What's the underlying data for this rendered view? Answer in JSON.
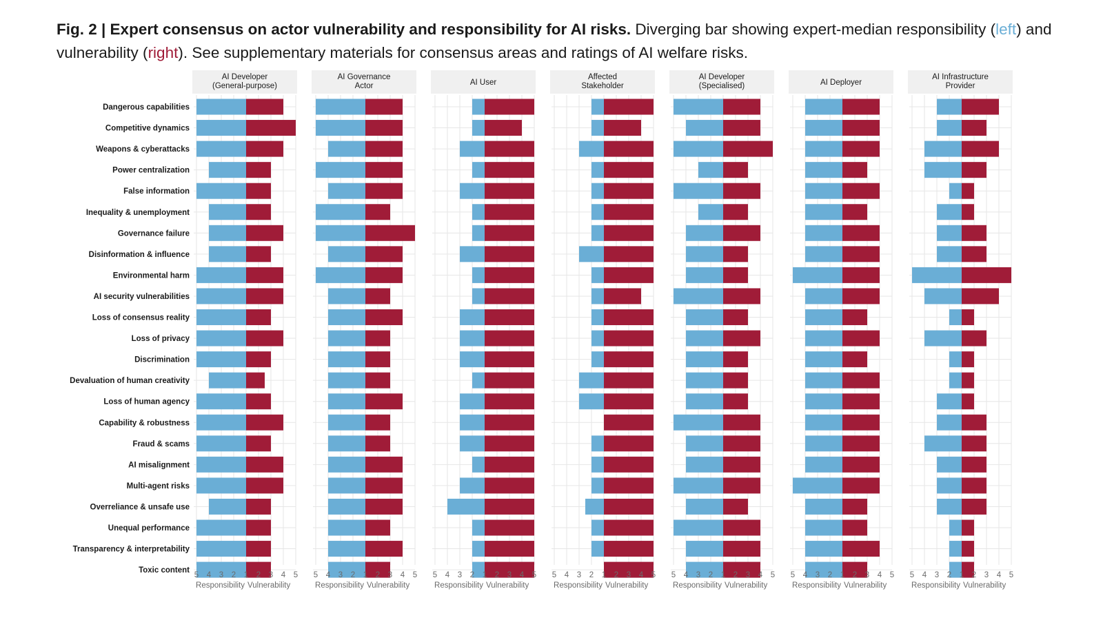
{
  "caption": {
    "label": "Fig. 2 | Expert consensus on actor vulnerability and responsibility for AI risks.",
    "text_1": " Diverging bar showing expert-median responsibility (",
    "left_word": "left",
    "text_2": ") and vulnerability (",
    "right_word": "right",
    "text_3": "). See supplementary materials for consensus areas and ratings of AI welfare risks."
  },
  "colors": {
    "responsibility": "#6aaed6",
    "vulnerability": "#a01c38",
    "panel_header_bg": "#f0f0f0",
    "grid": "#e6e6e6"
  },
  "chart_data": {
    "type": "bar",
    "orientation": "horizontal-diverging",
    "x_tick_labels": [
      "5",
      "4",
      "3",
      "2",
      "1",
      "2",
      "3",
      "4",
      "5"
    ],
    "xlabel_left": "Responsibility",
    "xlabel_right": "Vulnerability",
    "xlim": [
      1,
      5
    ],
    "grid": true,
    "categories": [
      "Dangerous capabilities",
      "Competitive dynamics",
      "Weapons & cyberattacks",
      "Power centralization",
      "False information",
      "Inequality & unemployment",
      "Governance failure",
      "Disinformation & influence",
      "Environmental harm",
      "AI security vulnerabilities",
      "Loss of consensus reality",
      "Loss of privacy",
      "Discrimination",
      "Devaluation of human creativity",
      "Loss of human agency",
      "Capability & robustness",
      "Fraud & scams",
      "AI misalignment",
      "Multi-agent risks",
      "Overreliance & unsafe use",
      "Unequal performance",
      "Transparency & interpretability",
      "Toxic content"
    ],
    "panels": [
      {
        "name": "AI Developer\n(General-purpose)",
        "responsibility": [
          5,
          5,
          5,
          4,
          5,
          4,
          4,
          4,
          5,
          5,
          5,
          5,
          5,
          4,
          5,
          5,
          5,
          5,
          5,
          4,
          5,
          5,
          5
        ],
        "vulnerability": [
          4,
          5,
          4,
          3,
          3,
          3,
          4,
          3,
          4,
          4,
          3,
          4,
          3,
          2.5,
          3,
          4,
          3,
          4,
          4,
          3,
          3,
          3,
          3
        ]
      },
      {
        "name": "AI Governance\nActor",
        "responsibility": [
          5,
          5,
          4,
          5,
          4,
          5,
          5,
          4,
          5,
          4,
          4,
          4,
          4,
          4,
          4,
          4,
          4,
          4,
          4,
          4,
          4,
          4,
          4
        ],
        "vulnerability": [
          4,
          4,
          4,
          4,
          4,
          3,
          5,
          4,
          4,
          3,
          4,
          3,
          3,
          3,
          4,
          3,
          3,
          4,
          4,
          4,
          3,
          4,
          3
        ]
      },
      {
        "name": "AI User",
        "responsibility": [
          2,
          2,
          3,
          2,
          3,
          2,
          2,
          3,
          2,
          2,
          3,
          3,
          3,
          2,
          3,
          3,
          3,
          2,
          3,
          4,
          2,
          2,
          2
        ],
        "vulnerability": [
          5,
          4,
          5,
          5,
          5,
          5,
          5,
          5,
          5,
          5,
          5,
          5,
          5,
          5,
          5,
          5,
          5,
          5,
          5,
          5,
          5,
          5,
          5
        ]
      },
      {
        "name": "Affected\nStakeholder",
        "responsibility": [
          2,
          2,
          3,
          2,
          2,
          2,
          2,
          3,
          2,
          2,
          2,
          2,
          2,
          3,
          3,
          1,
          2,
          2,
          2,
          2.5,
          2,
          2,
          1
        ],
        "vulnerability": [
          5,
          4,
          5,
          5,
          5,
          5,
          5,
          5,
          5,
          4,
          5,
          5,
          5,
          5,
          5,
          5,
          5,
          5,
          5,
          5,
          5,
          5,
          5
        ]
      },
      {
        "name": "AI Developer\n(Specialised)",
        "responsibility": [
          5,
          4,
          5,
          3,
          5,
          3,
          4,
          4,
          4,
          5,
          4,
          4,
          4,
          4,
          4,
          5,
          4,
          4,
          5,
          4,
          5,
          4,
          4
        ],
        "vulnerability": [
          4,
          4,
          5,
          3,
          4,
          3,
          4,
          3,
          3,
          4,
          3,
          4,
          3,
          3,
          3,
          4,
          4,
          4,
          4,
          3,
          4,
          4,
          4
        ]
      },
      {
        "name": "AI Deployer",
        "responsibility": [
          4,
          4,
          4,
          4,
          4,
          4,
          4,
          4,
          5,
          4,
          4,
          4,
          4,
          4,
          4,
          4,
          4,
          4,
          5,
          4,
          4,
          4,
          4
        ],
        "vulnerability": [
          4,
          4,
          4,
          3,
          4,
          3,
          4,
          4,
          4,
          4,
          3,
          4,
          3,
          4,
          4,
          4,
          4,
          4,
          4,
          3,
          3,
          4,
          3
        ]
      },
      {
        "name": "AI Infrastructure\nProvider",
        "responsibility": [
          3,
          3,
          4,
          4,
          2,
          3,
          3,
          3,
          5,
          4,
          2,
          4,
          2,
          2,
          3,
          3,
          4,
          3,
          3,
          3,
          2,
          2,
          2
        ],
        "vulnerability": [
          4,
          3,
          4,
          3,
          2,
          2,
          3,
          3,
          5,
          4,
          2,
          3,
          2,
          2,
          2,
          3,
          3,
          3,
          3,
          3,
          2,
          2,
          2
        ]
      }
    ]
  }
}
